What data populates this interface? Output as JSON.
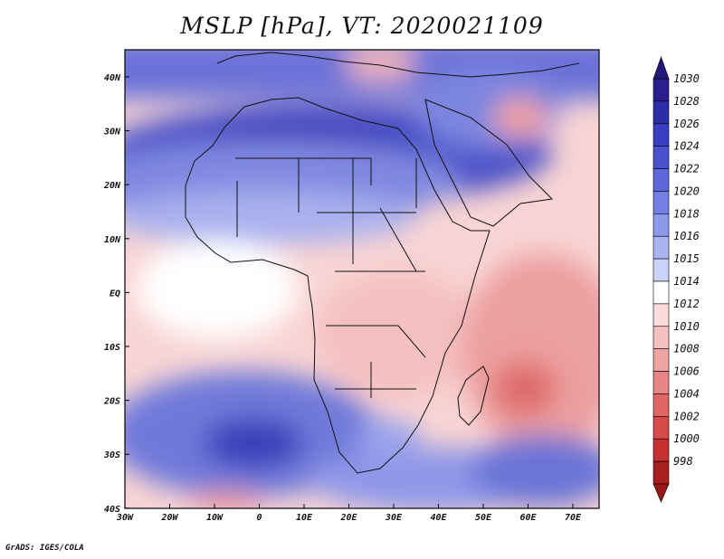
{
  "title": "MSLP [hPa], VT: 2020021109",
  "footer": "GrADS: IGES/COLA",
  "axes": {
    "lon_labels": [
      "30W",
      "20W",
      "10W",
      "0",
      "10E",
      "20E",
      "30E",
      "40E",
      "50E",
      "60E",
      "70E"
    ],
    "lat_labels": [
      "40N",
      "30N",
      "20N",
      "10N",
      "EQ",
      "10S",
      "20S",
      "30S",
      "40S"
    ]
  },
  "colorbar": {
    "levels": [
      "1030",
      "1028",
      "1026",
      "1024",
      "1022",
      "1020",
      "1018",
      "1016",
      "1015",
      "1014",
      "1012",
      "1010",
      "1008",
      "1006",
      "1004",
      "1002",
      "1000",
      "998"
    ],
    "colors": [
      "#2a1f8c",
      "#2c2ea8",
      "#3a3ec2",
      "#4b52cf",
      "#5e68da",
      "#7480e3",
      "#8d99ea",
      "#aab4f1",
      "#ccd3f8",
      "#ffffff",
      "#fbdcdc",
      "#f5c0c0",
      "#efa3a3",
      "#e88585",
      "#e06666",
      "#d54b4b",
      "#c43232",
      "#a82020"
    ]
  },
  "colors": {
    "land_outline": "#111111",
    "frame": "#000000"
  }
}
